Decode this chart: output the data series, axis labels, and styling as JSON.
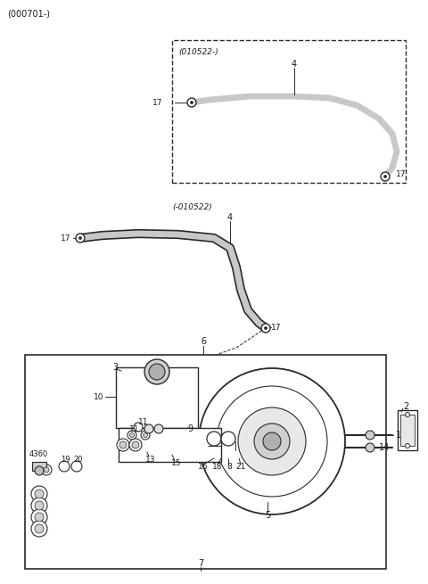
{
  "bg_color": "#ffffff",
  "line_color": "#2a2a2a",
  "text_color": "#1a1a1a",
  "fig_width": 4.8,
  "fig_height": 6.55,
  "dpi": 100
}
